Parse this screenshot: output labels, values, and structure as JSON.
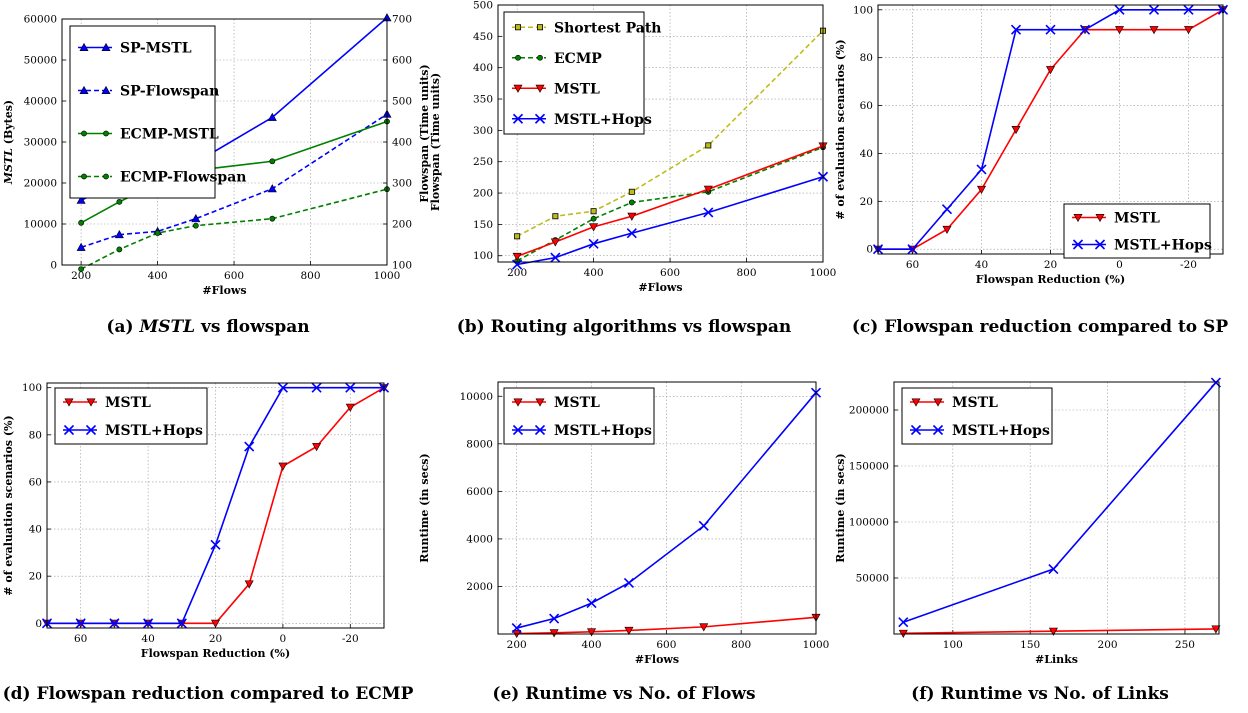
{
  "chart_data": [
    {
      "type": "line",
      "id": "a",
      "caption_prefix": "(a) ",
      "caption_italic": "MSTL",
      "caption_rest": " vs flowspan",
      "xlabel": "#Flows",
      "ylabel_left_italic": "MSTL",
      "ylabel_left_rest": " (Bytes)",
      "ylabel_right": "Flowspan (Time units)",
      "xlim": [
        150,
        1000
      ],
      "ylim": [
        0,
        60000
      ],
      "ylim_right": [
        100,
        700
      ],
      "xticks": [
        200,
        400,
        600,
        800,
        1000
      ],
      "yticks": [
        0,
        10000,
        20000,
        30000,
        40000,
        50000,
        60000
      ],
      "yticks_right": [
        100,
        200,
        300,
        400,
        500,
        600,
        700
      ],
      "grid": true,
      "legend_position": "top-left",
      "series": [
        {
          "name": "SP-MSTL",
          "axis": "left",
          "color": "#0000ff",
          "dash": false,
          "marker": "triangle-up",
          "x": [
            200,
            300,
            400,
            500,
            700,
            1000
          ],
          "y": [
            15800,
            20200,
            21200,
            25000,
            36000,
            60300
          ]
        },
        {
          "name": "SP-Flowspan",
          "axis": "right",
          "color": "#0000ff",
          "dash": true,
          "marker": "triangle-up",
          "x": [
            200,
            300,
            400,
            500,
            700,
            1000
          ],
          "y": [
            143,
            174,
            182,
            213,
            286,
            468
          ]
        },
        {
          "name": "ECMP-MSTL",
          "axis": "left",
          "color": "#008000",
          "dash": false,
          "marker": "circle",
          "x": [
            200,
            300,
            400,
            500,
            700,
            1000
          ],
          "y": [
            10300,
            15400,
            20000,
            23100,
            25300,
            35000
          ]
        },
        {
          "name": "ECMP-Flowspan",
          "axis": "right",
          "color": "#008000",
          "dash": true,
          "marker": "circle",
          "x": [
            200,
            300,
            400,
            500,
            700,
            1000
          ],
          "y": [
            90,
            138,
            178,
            196,
            213,
            285
          ]
        }
      ]
    },
    {
      "type": "line",
      "id": "b",
      "caption_prefix": "(b) ",
      "caption_rest": "Routing algorithms vs flowspan",
      "xlabel": "#Flows",
      "ylabel": "Flowspan (Time units)",
      "xlim": [
        150,
        1000
      ],
      "ylim": [
        90,
        500
      ],
      "xticks": [
        200,
        400,
        600,
        800,
        1000
      ],
      "yticks": [
        100,
        150,
        200,
        250,
        300,
        350,
        400,
        450,
        500
      ],
      "grid": true,
      "legend_position": "top-left",
      "series": [
        {
          "name": "Shortest Path",
          "color": "#bdbd1a",
          "dash": true,
          "marker": "square",
          "x": [
            200,
            300,
            400,
            500,
            700,
            1000
          ],
          "y": [
            131,
            163,
            171,
            202,
            276,
            459
          ]
        },
        {
          "name": "ECMP",
          "color": "#008000",
          "dash": true,
          "marker": "circle",
          "x": [
            200,
            300,
            400,
            500,
            700,
            1000
          ],
          "y": [
            92,
            125,
            159,
            185,
            202,
            273
          ]
        },
        {
          "name": "MSTL",
          "color": "#ff0000",
          "dash": false,
          "marker": "triangle-down",
          "x": [
            200,
            300,
            400,
            500,
            700,
            1000
          ],
          "y": [
            99,
            122,
            146,
            163,
            206,
            275
          ]
        },
        {
          "name": "MSTL+Hops",
          "color": "#0000ff",
          "dash": false,
          "marker": "x",
          "x": [
            200,
            300,
            400,
            500,
            700,
            1000
          ],
          "y": [
            86,
            97,
            119,
            136,
            169,
            226
          ]
        }
      ]
    },
    {
      "type": "line",
      "id": "c",
      "caption_prefix": "(c) ",
      "caption_rest": "Flowspan reduction compared to SP",
      "xlabel": "Flowspan Reduction (%)",
      "ylabel": "# of evaluation scenarios (%)",
      "xlim": [
        70,
        -30
      ],
      "ylim": [
        -2,
        102
      ],
      "xticks": [
        60,
        40,
        20,
        0,
        -20
      ],
      "yticks": [
        0,
        20,
        40,
        60,
        80,
        100
      ],
      "grid": true,
      "legend_position": "bottom-right",
      "series": [
        {
          "name": "MSTL",
          "color": "#ff0000",
          "dash": false,
          "marker": "triangle-down",
          "x": [
            70,
            60,
            50,
            40,
            30,
            20,
            10,
            0,
            -10,
            -20,
            -30
          ],
          "y": [
            0,
            0,
            8.3,
            25,
            50,
            75,
            91.7,
            91.7,
            91.7,
            91.7,
            100
          ]
        },
        {
          "name": "MSTL+Hops",
          "color": "#0000ff",
          "dash": false,
          "marker": "x",
          "x": [
            70,
            60,
            50,
            40,
            30,
            20,
            10,
            0,
            -10,
            -20,
            -30
          ],
          "y": [
            0,
            0,
            16.7,
            33.3,
            91.7,
            91.7,
            91.7,
            100,
            100,
            100,
            100
          ]
        }
      ]
    },
    {
      "type": "line",
      "id": "d",
      "caption_prefix": "(d) ",
      "caption_rest": "Flowspan reduction compared to ECMP",
      "xlabel": "Flowspan Reduction (%)",
      "ylabel": "# of evaluation scenarios (%)",
      "xlim": [
        70,
        -30
      ],
      "ylim": [
        -2,
        102
      ],
      "xticks": [
        60,
        40,
        20,
        0,
        -20
      ],
      "yticks": [
        0,
        20,
        40,
        60,
        80,
        100
      ],
      "grid": true,
      "legend_position": "top-left",
      "series": [
        {
          "name": "MSTL",
          "color": "#ff0000",
          "dash": false,
          "marker": "triangle-down",
          "x": [
            70,
            60,
            50,
            40,
            30,
            20,
            10,
            0,
            -10,
            -20,
            -30
          ],
          "y": [
            0,
            0,
            0,
            0,
            0,
            0,
            16.7,
            66.7,
            75,
            91.7,
            100
          ]
        },
        {
          "name": "MSTL+Hops",
          "color": "#0000ff",
          "dash": false,
          "marker": "x",
          "x": [
            70,
            60,
            50,
            40,
            30,
            20,
            10,
            0,
            -10,
            -20,
            -30
          ],
          "y": [
            0,
            0,
            0,
            0,
            0,
            33.3,
            75,
            100,
            100,
            100,
            100
          ]
        }
      ]
    },
    {
      "type": "line",
      "id": "e",
      "caption_prefix": "(e) ",
      "caption_rest": "Runtime vs No. of Flows",
      "xlabel": "#Flows",
      "ylabel": "Runtime (in secs)",
      "xlim": [
        150,
        1000
      ],
      "ylim": [
        0,
        10600
      ],
      "xticks": [
        200,
        400,
        600,
        800,
        1000
      ],
      "yticks": [
        2000,
        4000,
        6000,
        8000,
        10000
      ],
      "grid": true,
      "legend_position": "top-left",
      "series": [
        {
          "name": "MSTL",
          "color": "#ff0000",
          "dash": false,
          "marker": "triangle-down",
          "x": [
            200,
            300,
            400,
            500,
            700,
            1000
          ],
          "y": [
            20,
            50,
            90,
            150,
            300,
            700
          ]
        },
        {
          "name": "MSTL+Hops",
          "color": "#0000ff",
          "dash": false,
          "marker": "x",
          "x": [
            200,
            300,
            400,
            500,
            700,
            1000
          ],
          "y": [
            250,
            650,
            1300,
            2150,
            4550,
            10150
          ]
        }
      ]
    },
    {
      "type": "line",
      "id": "f",
      "caption_prefix": "(f) ",
      "caption_rest": "Runtime vs No. of Links",
      "xlabel": "#Links",
      "ylabel": "Runtime (in secs)",
      "xlim": [
        62,
        272
      ],
      "ylim": [
        0,
        225000
      ],
      "xticks": [
        100,
        150,
        200,
        250
      ],
      "yticks": [
        50000,
        100000,
        150000,
        200000
      ],
      "grid": true,
      "legend_position": "top-left",
      "series": [
        {
          "name": "MSTL",
          "color": "#ff0000",
          "dash": false,
          "marker": "triangle-down",
          "x": [
            68,
            165,
            270
          ],
          "y": [
            600,
            2500,
            4500
          ]
        },
        {
          "name": "MSTL+Hops",
          "color": "#0000ff",
          "dash": false,
          "marker": "x",
          "x": [
            68,
            165,
            270
          ],
          "y": [
            10500,
            58000,
            224500
          ]
        }
      ]
    }
  ]
}
